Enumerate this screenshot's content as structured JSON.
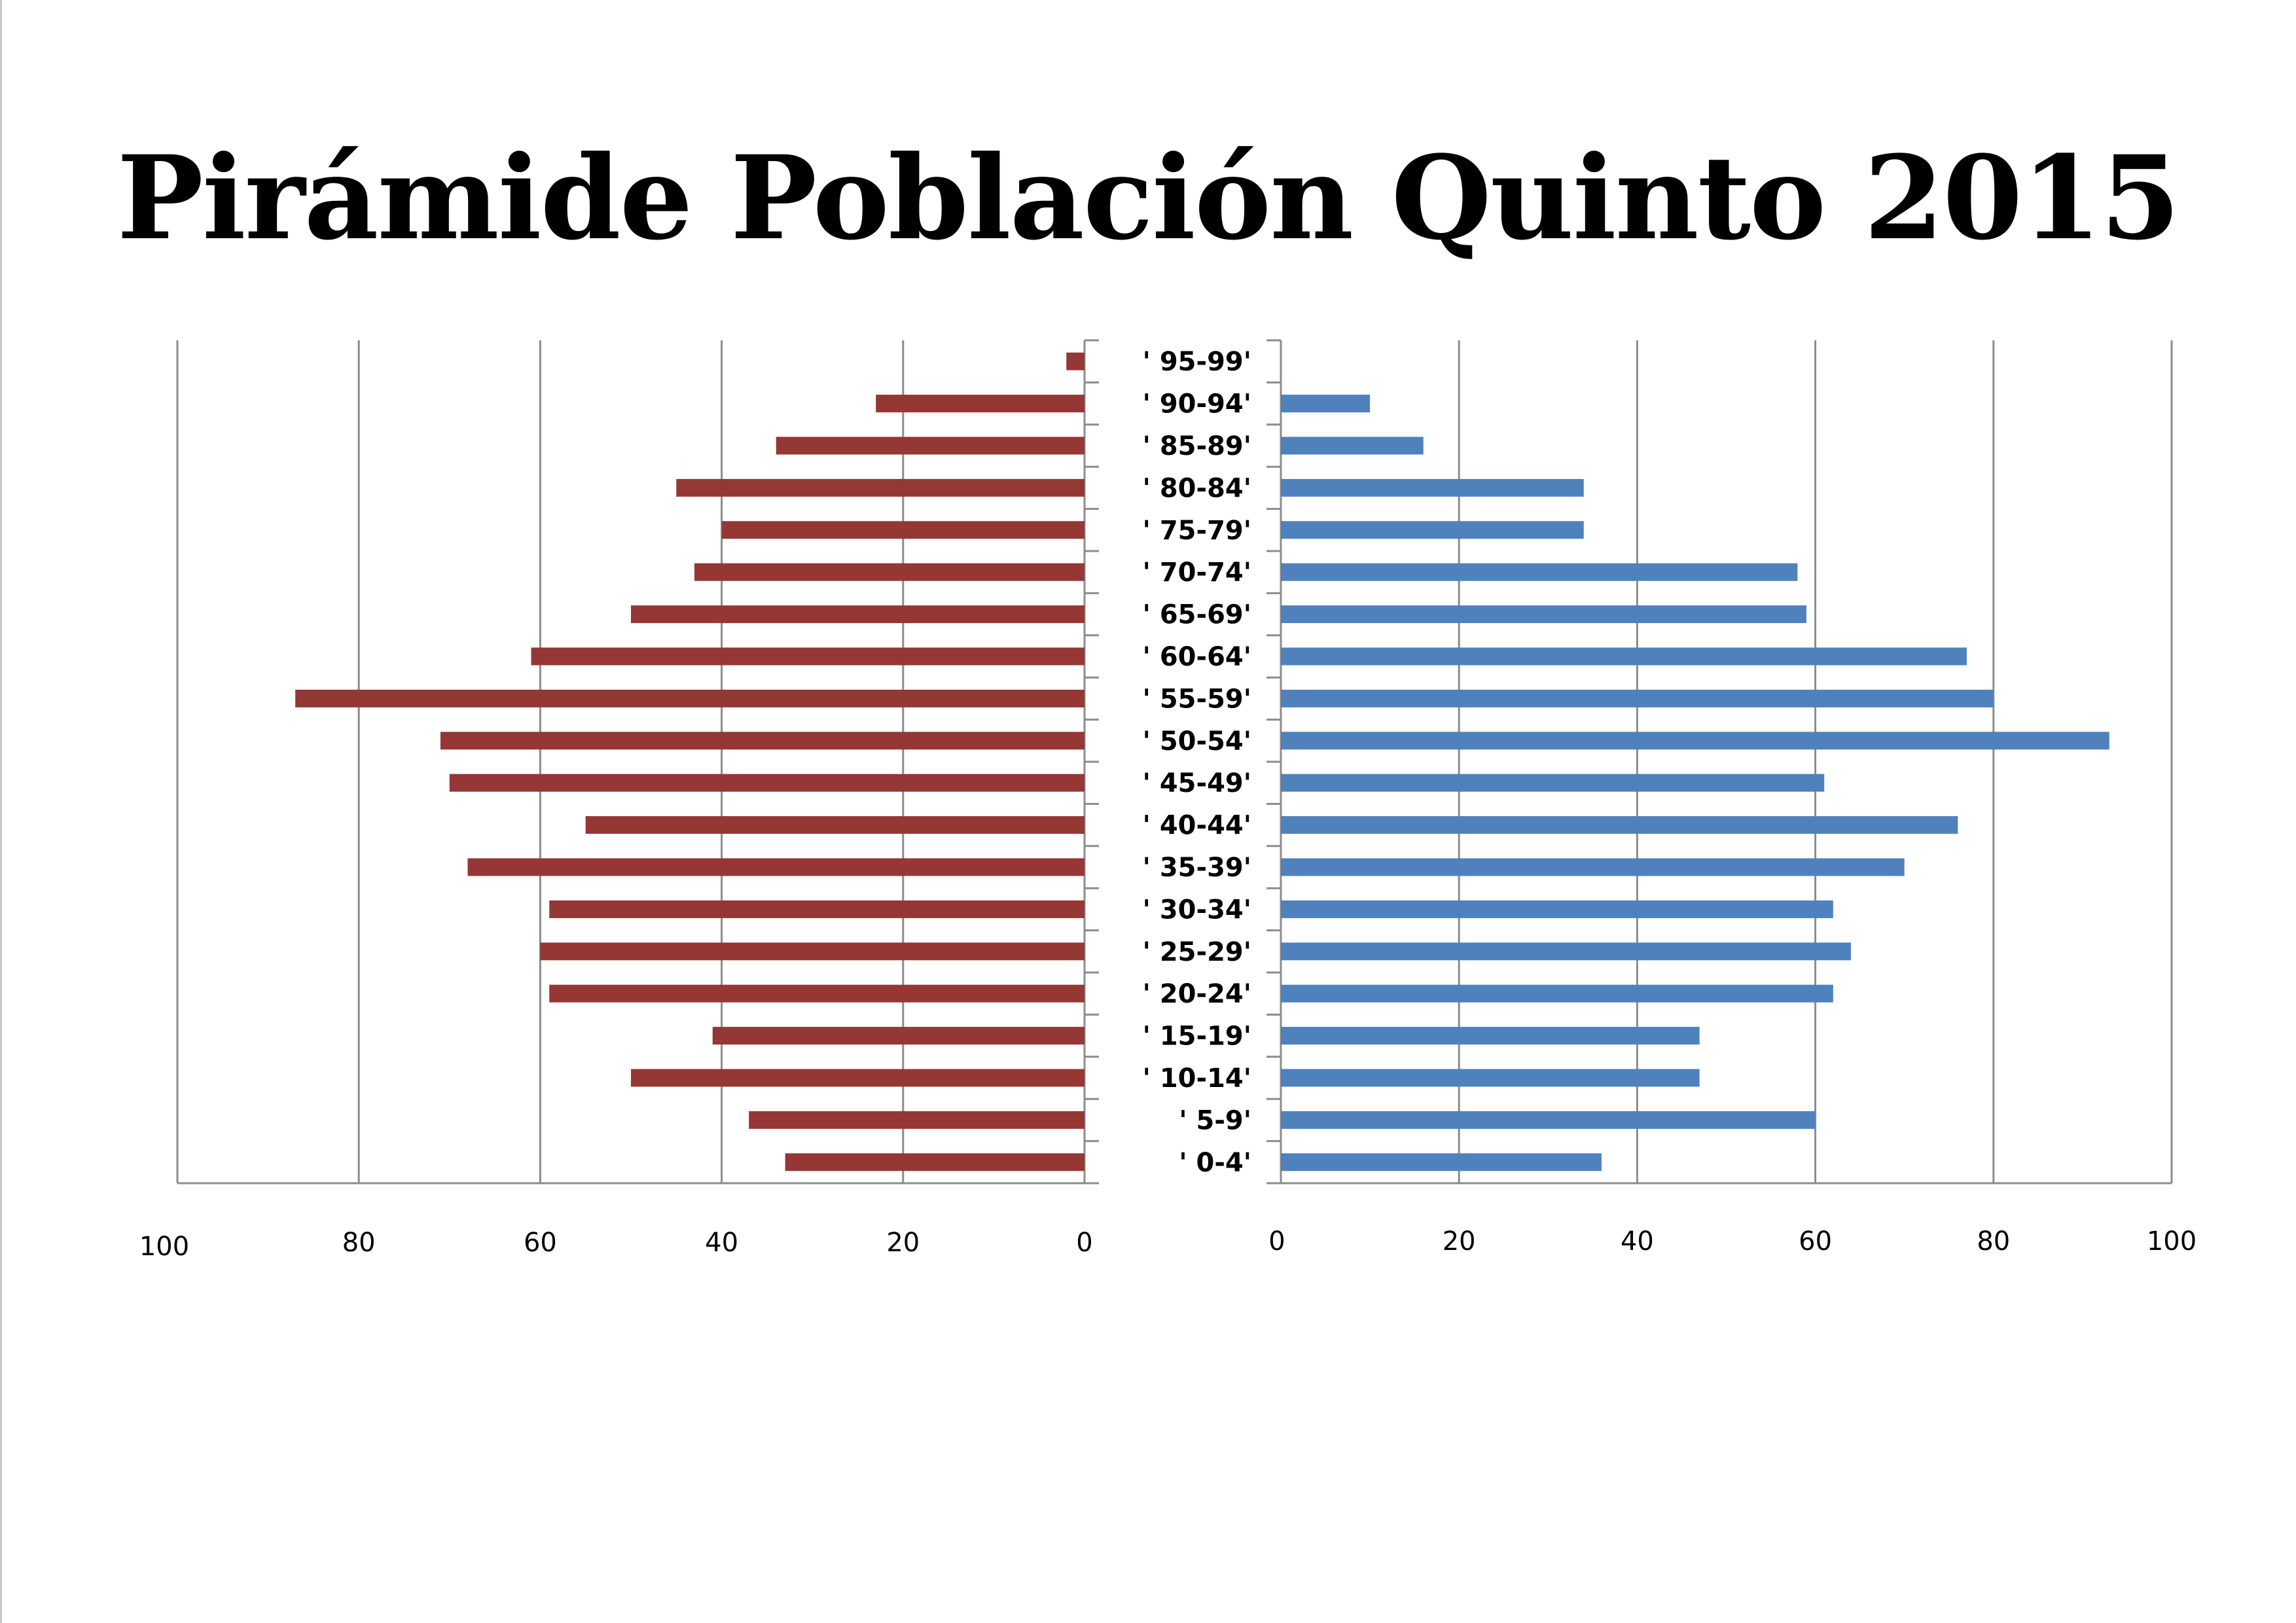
{
  "title": "Pirámide Población Quinto 2015",
  "chart_data": {
    "type": "bar",
    "orientation": "horizontal-pyramid",
    "title": "Pirámide Población Quinto 2015",
    "categories": [
      "' 95-99'",
      "' 90-94'",
      "' 85-89'",
      "' 80-84'",
      "' 75-79'",
      "' 70-74'",
      "' 65-69'",
      "' 60-64'",
      "' 55-59'",
      "' 50-54'",
      "' 45-49'",
      "' 40-44'",
      "' 35-39'",
      "' 30-34'",
      "' 25-29'",
      "' 20-24'",
      "' 15-19'",
      "' 10-14'",
      "' 5-9'",
      "' 0-4'"
    ],
    "series": [
      {
        "color": "#953735",
        "side": "left",
        "values": [
          2,
          23,
          34,
          45,
          40,
          43,
          50,
          61,
          87,
          71,
          70,
          55,
          68,
          59,
          60,
          59,
          41,
          50,
          37,
          33
        ]
      },
      {
        "color": "#4f81bd",
        "side": "right",
        "values": [
          0,
          10,
          16,
          34,
          34,
          58,
          59,
          77,
          80,
          93,
          61,
          76,
          70,
          62,
          64,
          62,
          47,
          47,
          60,
          36
        ]
      }
    ],
    "left_axis": {
      "ticks": [
        "100",
        "80",
        "60",
        "40",
        "20",
        "0"
      ],
      "xlim": [
        0,
        100
      ],
      "reversed": true
    },
    "right_axis": {
      "ticks": [
        "0",
        "20",
        "40",
        "60",
        "80",
        "100"
      ],
      "xlim": [
        0,
        100
      ]
    },
    "grid": true,
    "legend": "none"
  }
}
